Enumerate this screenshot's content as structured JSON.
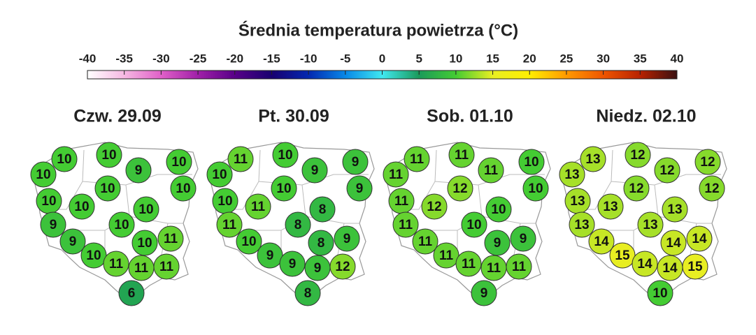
{
  "title": "Średnia temperatura powietrza (°C)",
  "colorbar": {
    "ticks": [
      -40,
      -35,
      -30,
      -25,
      -20,
      -15,
      -10,
      -5,
      0,
      5,
      10,
      15,
      20,
      25,
      30,
      35,
      40
    ],
    "colors": [
      "#ffffff",
      "#f6b8e2",
      "#e060c8",
      "#a020a8",
      "#580088",
      "#180070",
      "#0428b0",
      "#0888e8",
      "#40e8f0",
      "#1a9a5a",
      "#44cc33",
      "#e8ee22",
      "#ffee00",
      "#ff9a00",
      "#ee5500",
      "#b82200",
      "#3a1010"
    ]
  },
  "panels": [
    {
      "title": "Czw. 29.09",
      "values": [
        10,
        10,
        10,
        9,
        10,
        10,
        10,
        10,
        10,
        10,
        9,
        10,
        9,
        10,
        11,
        10,
        11,
        11,
        11,
        6
      ]
    },
    {
      "title": "Pt. 30.09",
      "values": [
        11,
        10,
        10,
        9,
        9,
        9,
        10,
        10,
        11,
        8,
        11,
        8,
        10,
        8,
        9,
        9,
        9,
        9,
        12,
        8
      ]
    },
    {
      "title": "Sob. 01.10",
      "values": [
        11,
        11,
        11,
        11,
        10,
        10,
        12,
        11,
        12,
        10,
        11,
        10,
        11,
        9,
        9,
        11,
        11,
        11,
        11,
        9
      ]
    },
    {
      "title": "Niedz. 02.10",
      "values": [
        13,
        12,
        13,
        12,
        12,
        12,
        12,
        13,
        13,
        13,
        13,
        13,
        14,
        14,
        14,
        15,
        14,
        14,
        15,
        10
      ]
    }
  ]
}
